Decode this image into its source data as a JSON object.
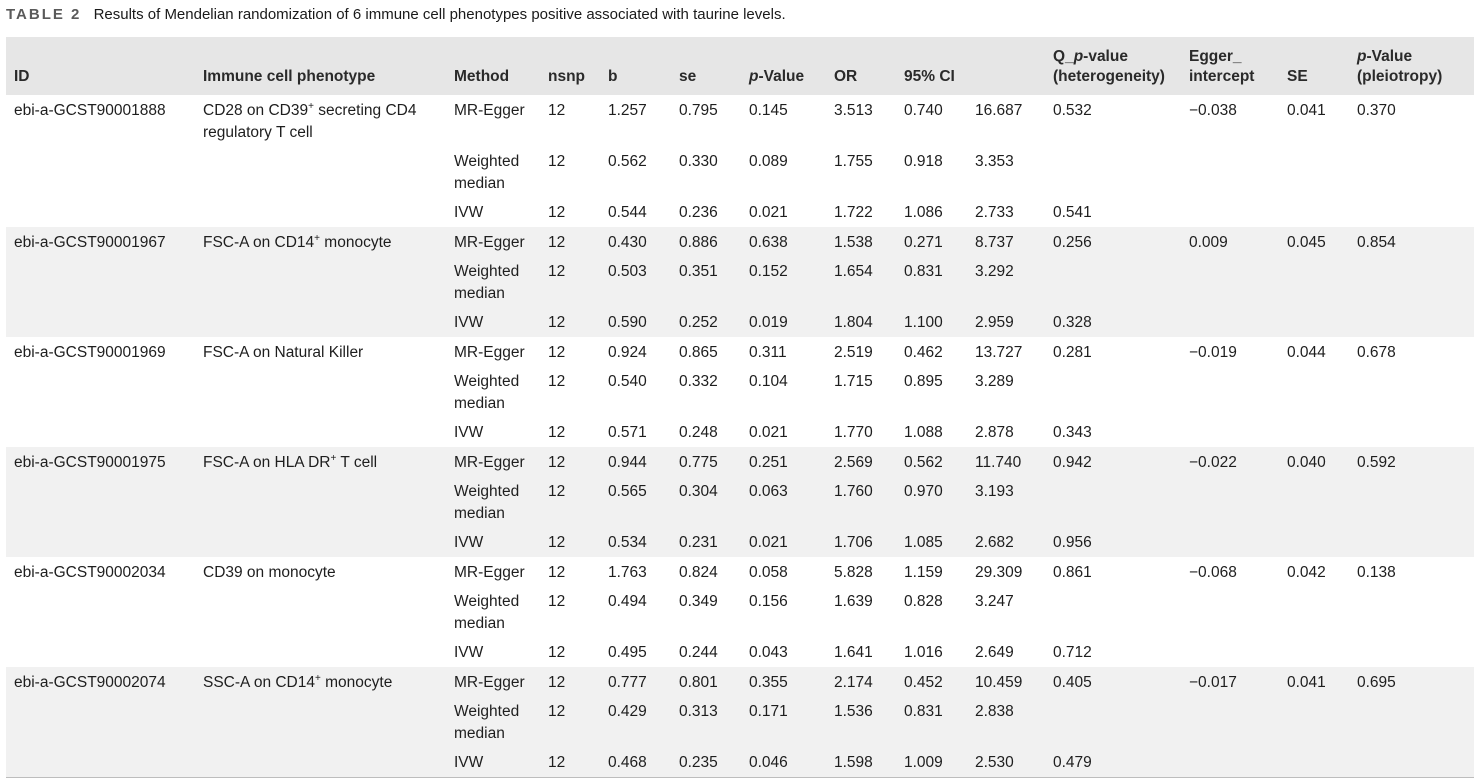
{
  "caption": {
    "label": "TABLE 2",
    "text": "Results of Mendelian randomization of 6 immune cell phenotypes positive associated with taurine levels."
  },
  "headers": {
    "id": "ID",
    "phenotype": "Immune cell phenotype",
    "method": "Method",
    "nsnp": "nsnp",
    "b": "b",
    "se": "se",
    "p_value_italic": "p",
    "p_value_rest": "-Value",
    "or": "OR",
    "ci": "95% CI",
    "q_line1_a": "Q_",
    "q_line1_italic": "p",
    "q_line1_b": "-value",
    "q_line2": "(heterogeneity)",
    "egger_line1": "Egger_",
    "egger_line2": "intercept",
    "se2": "SE",
    "pleio_italic": "p",
    "pleio_line1_rest": "-Value",
    "pleio_line2": "(pleiotropy)"
  },
  "groups": [
    {
      "id": "ebi-a-GCST90001888",
      "phenotype_pre": "CD28 on CD39",
      "phenotype_sup": "+",
      "phenotype_post": " secreting CD4 regulatory T cell",
      "egger_intercept": "−0.038",
      "se": "0.041",
      "p_pleiotropy": "0.370",
      "rows": [
        {
          "method": "MR-Egger",
          "nsnp": "12",
          "b": "1.257",
          "se": "0.795",
          "p": "0.145",
          "or": "3.513",
          "ci_low": "0.740",
          "ci_high": "16.687",
          "q": "0.532"
        },
        {
          "method": "Weighted median",
          "nsnp": "12",
          "b": "0.562",
          "se": "0.330",
          "p": "0.089",
          "or": "1.755",
          "ci_low": "0.918",
          "ci_high": "3.353",
          "q": ""
        },
        {
          "method": "IVW",
          "nsnp": "12",
          "b": "0.544",
          "se": "0.236",
          "p": "0.021",
          "or": "1.722",
          "ci_low": "1.086",
          "ci_high": "2.733",
          "q": "0.541"
        }
      ]
    },
    {
      "id": "ebi-a-GCST90001967",
      "phenotype_pre": "FSC-A on CD14",
      "phenotype_sup": "+",
      "phenotype_post": " monocyte",
      "egger_intercept": "0.009",
      "se": "0.045",
      "p_pleiotropy": "0.854",
      "rows": [
        {
          "method": "MR-Egger",
          "nsnp": "12",
          "b": "0.430",
          "se": "0.886",
          "p": "0.638",
          "or": "1.538",
          "ci_low": "0.271",
          "ci_high": "8.737",
          "q": "0.256"
        },
        {
          "method": "Weighted median",
          "nsnp": "12",
          "b": "0.503",
          "se": "0.351",
          "p": "0.152",
          "or": "1.654",
          "ci_low": "0.831",
          "ci_high": "3.292",
          "q": ""
        },
        {
          "method": "IVW",
          "nsnp": "12",
          "b": "0.590",
          "se": "0.252",
          "p": "0.019",
          "or": "1.804",
          "ci_low": "1.100",
          "ci_high": "2.959",
          "q": "0.328"
        }
      ]
    },
    {
      "id": "ebi-a-GCST90001969",
      "phenotype_pre": "FSC-A on Natural Killer",
      "phenotype_sup": "",
      "phenotype_post": "",
      "egger_intercept": "−0.019",
      "se": "0.044",
      "p_pleiotropy": "0.678",
      "rows": [
        {
          "method": "MR-Egger",
          "nsnp": "12",
          "b": "0.924",
          "se": "0.865",
          "p": "0.311",
          "or": "2.519",
          "ci_low": "0.462",
          "ci_high": "13.727",
          "q": "0.281"
        },
        {
          "method": "Weighted median",
          "nsnp": "12",
          "b": "0.540",
          "se": "0.332",
          "p": "0.104",
          "or": "1.715",
          "ci_low": "0.895",
          "ci_high": "3.289",
          "q": ""
        },
        {
          "method": "IVW",
          "nsnp": "12",
          "b": "0.571",
          "se": "0.248",
          "p": "0.021",
          "or": "1.770",
          "ci_low": "1.088",
          "ci_high": "2.878",
          "q": "0.343"
        }
      ]
    },
    {
      "id": "ebi-a-GCST90001975",
      "phenotype_pre": "FSC-A on HLA DR",
      "phenotype_sup": "+",
      "phenotype_post": " T cell",
      "egger_intercept": "−0.022",
      "se": "0.040",
      "p_pleiotropy": "0.592",
      "rows": [
        {
          "method": "MR-Egger",
          "nsnp": "12",
          "b": "0.944",
          "se": "0.775",
          "p": "0.251",
          "or": "2.569",
          "ci_low": "0.562",
          "ci_high": "11.740",
          "q": "0.942"
        },
        {
          "method": "Weighted median",
          "nsnp": "12",
          "b": "0.565",
          "se": "0.304",
          "p": "0.063",
          "or": "1.760",
          "ci_low": "0.970",
          "ci_high": "3.193",
          "q": ""
        },
        {
          "method": "IVW",
          "nsnp": "12",
          "b": "0.534",
          "se": "0.231",
          "p": "0.021",
          "or": "1.706",
          "ci_low": "1.085",
          "ci_high": "2.682",
          "q": "0.956"
        }
      ]
    },
    {
      "id": "ebi-a-GCST90002034",
      "phenotype_pre": "CD39 on monocyte",
      "phenotype_sup": "",
      "phenotype_post": "",
      "egger_intercept": "−0.068",
      "se": "0.042",
      "p_pleiotropy": "0.138",
      "rows": [
        {
          "method": "MR-Egger",
          "nsnp": "12",
          "b": "1.763",
          "se": "0.824",
          "p": "0.058",
          "or": "5.828",
          "ci_low": "1.159",
          "ci_high": "29.309",
          "q": "0.861"
        },
        {
          "method": "Weighted median",
          "nsnp": "12",
          "b": "0.494",
          "se": "0.349",
          "p": "0.156",
          "or": "1.639",
          "ci_low": "0.828",
          "ci_high": "3.247",
          "q": ""
        },
        {
          "method": "IVW",
          "nsnp": "12",
          "b": "0.495",
          "se": "0.244",
          "p": "0.043",
          "or": "1.641",
          "ci_low": "1.016",
          "ci_high": "2.649",
          "q": "0.712"
        }
      ]
    },
    {
      "id": "ebi-a-GCST90002074",
      "phenotype_pre": "SSC-A on CD14",
      "phenotype_sup": "+",
      "phenotype_post": " monocyte",
      "egger_intercept": "−0.017",
      "se": "0.041",
      "p_pleiotropy": "0.695",
      "rows": [
        {
          "method": "MR-Egger",
          "nsnp": "12",
          "b": "0.777",
          "se": "0.801",
          "p": "0.355",
          "or": "2.174",
          "ci_low": "0.452",
          "ci_high": "10.459",
          "q": "0.405"
        },
        {
          "method": "Weighted median",
          "nsnp": "12",
          "b": "0.429",
          "se": "0.313",
          "p": "0.171",
          "or": "1.536",
          "ci_low": "0.831",
          "ci_high": "2.838",
          "q": ""
        },
        {
          "method": "IVW",
          "nsnp": "12",
          "b": "0.468",
          "se": "0.235",
          "p": "0.046",
          "or": "1.598",
          "ci_low": "1.009",
          "ci_high": "2.530",
          "q": "0.479"
        }
      ]
    }
  ]
}
